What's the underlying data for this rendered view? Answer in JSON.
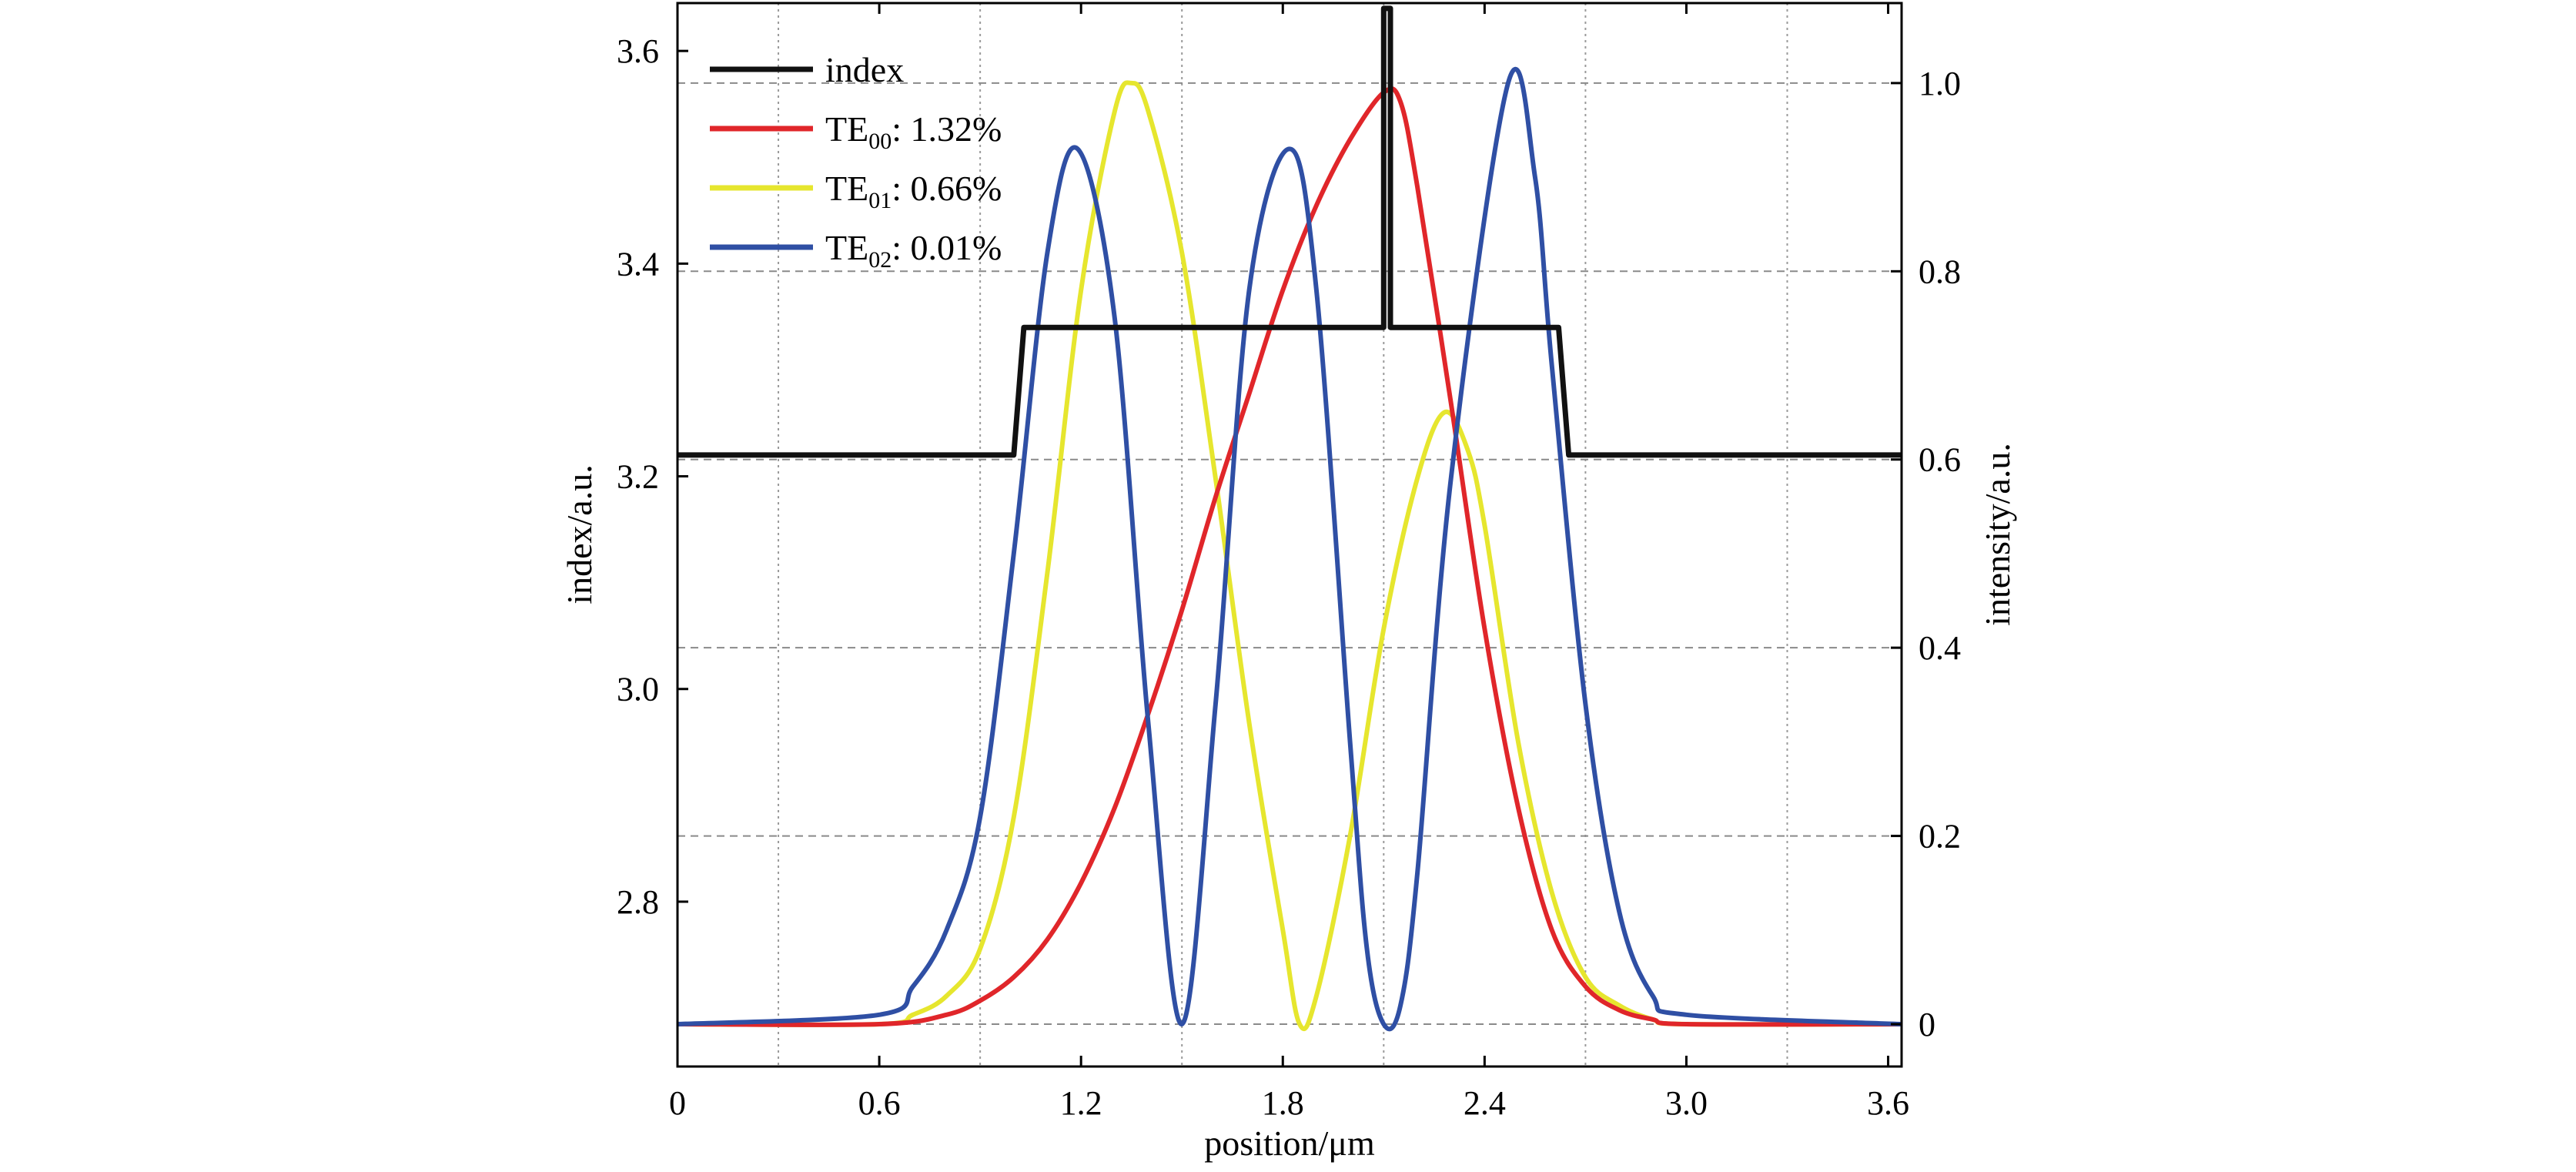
{
  "chart_data": {
    "type": "line",
    "xlabel": "position/μm",
    "ylabel_left": "index/a.u.",
    "ylabel_right": "intensity/a.u.",
    "xlim": [
      0,
      3.64
    ],
    "ylim_left": [
      2.645,
      3.645
    ],
    "ylim_right": [
      -0.045,
      1.085
    ],
    "x_ticks": [
      0,
      0.6,
      1.2,
      1.8,
      2.4,
      3.0,
      3.6
    ],
    "x_tick_labels": [
      "0",
      "0.6",
      "1.2",
      "1.8",
      "2.4",
      "3.0",
      "3.6"
    ],
    "y_left_ticks": [
      2.8,
      3.0,
      3.2,
      3.4,
      3.6
    ],
    "y_left_tick_labels": [
      "2.8",
      "3.0",
      "3.2",
      "3.4",
      "3.6"
    ],
    "y_right_ticks": [
      0,
      0.2,
      0.4,
      0.6,
      0.8,
      1.0
    ],
    "y_right_tick_labels": [
      "0",
      "0.2",
      "0.4",
      "0.6",
      "0.8",
      "1.0"
    ],
    "vertical_grid_x": [
      0.3,
      0.9,
      1.5,
      2.1,
      2.7,
      3.3
    ],
    "grid": true,
    "legend_placement": "top-left",
    "series": [
      {
        "name": "index",
        "legend_main": "index",
        "legend_sub": "",
        "legend_suffix": "",
        "axis": "left",
        "color": "#111111",
        "x": [
          0,
          1.0,
          1.03,
          2.1,
          2.1,
          2.12,
          2.12,
          2.62,
          2.65,
          3.64
        ],
        "y": [
          3.22,
          3.22,
          3.34,
          3.34,
          3.64,
          3.64,
          3.34,
          3.34,
          3.22,
          3.22
        ]
      },
      {
        "name": "TE00: 1.32%",
        "legend_main": "TE",
        "legend_sub": "00",
        "legend_suffix": ": 1.32%",
        "axis": "right",
        "color": "#e0262a",
        "x": [
          0,
          0.6,
          0.8,
          0.9,
          1.0,
          1.1,
          1.2,
          1.3,
          1.4,
          1.5,
          1.6,
          1.7,
          1.8,
          1.9,
          2.0,
          2.1,
          2.15,
          2.2,
          2.3,
          2.4,
          2.5,
          2.6,
          2.7,
          2.8,
          2.9,
          3.0,
          3.64
        ],
        "y": [
          0,
          0.0,
          0.01,
          0.025,
          0.05,
          0.09,
          0.15,
          0.23,
          0.33,
          0.44,
          0.56,
          0.67,
          0.78,
          0.87,
          0.94,
          0.99,
          0.98,
          0.89,
          0.66,
          0.42,
          0.23,
          0.1,
          0.04,
          0.015,
          0.005,
          0,
          0
        ]
      },
      {
        "name": "TE01: 0.66%",
        "legend_main": "TE",
        "legend_sub": "01",
        "legend_suffix": ": 0.66%",
        "axis": "right",
        "color": "#e6e62e",
        "x": [
          0,
          0.6,
          0.7,
          0.8,
          0.9,
          1.0,
          1.1,
          1.2,
          1.3,
          1.35,
          1.4,
          1.5,
          1.6,
          1.7,
          1.8,
          1.85,
          1.9,
          2.0,
          2.1,
          2.2,
          2.28,
          2.35,
          2.4,
          2.5,
          2.6,
          2.7,
          2.8,
          2.9,
          3.0,
          3.64
        ],
        "y": [
          0,
          0.0,
          0.01,
          0.03,
          0.08,
          0.22,
          0.48,
          0.78,
          0.97,
          1.0,
          0.97,
          0.82,
          0.58,
          0.32,
          0.1,
          0.0,
          0.03,
          0.2,
          0.42,
          0.58,
          0.65,
          0.61,
          0.53,
          0.3,
          0.14,
          0.05,
          0.02,
          0.005,
          0,
          0
        ]
      },
      {
        "name": "TE02: 0.01%",
        "legend_main": "TE",
        "legend_sub": "02",
        "legend_suffix": ": 0.01%",
        "axis": "right",
        "color": "#2f4fa4",
        "x": [
          0,
          0.6,
          0.7,
          0.8,
          0.9,
          1.0,
          1.1,
          1.19,
          1.3,
          1.4,
          1.5,
          1.6,
          1.7,
          1.82,
          1.9,
          2.0,
          2.05,
          2.1,
          2.15,
          2.2,
          2.3,
          2.47,
          2.55,
          2.6,
          2.7,
          2.8,
          2.9,
          3.0,
          3.64
        ],
        "y": [
          0,
          0.01,
          0.04,
          0.1,
          0.22,
          0.5,
          0.82,
          0.93,
          0.75,
          0.32,
          0.0,
          0.34,
          0.78,
          0.93,
          0.78,
          0.3,
          0.08,
          0.0,
          0.02,
          0.16,
          0.58,
          1.0,
          0.9,
          0.7,
          0.34,
          0.12,
          0.03,
          0.01,
          0
        ]
      }
    ]
  }
}
